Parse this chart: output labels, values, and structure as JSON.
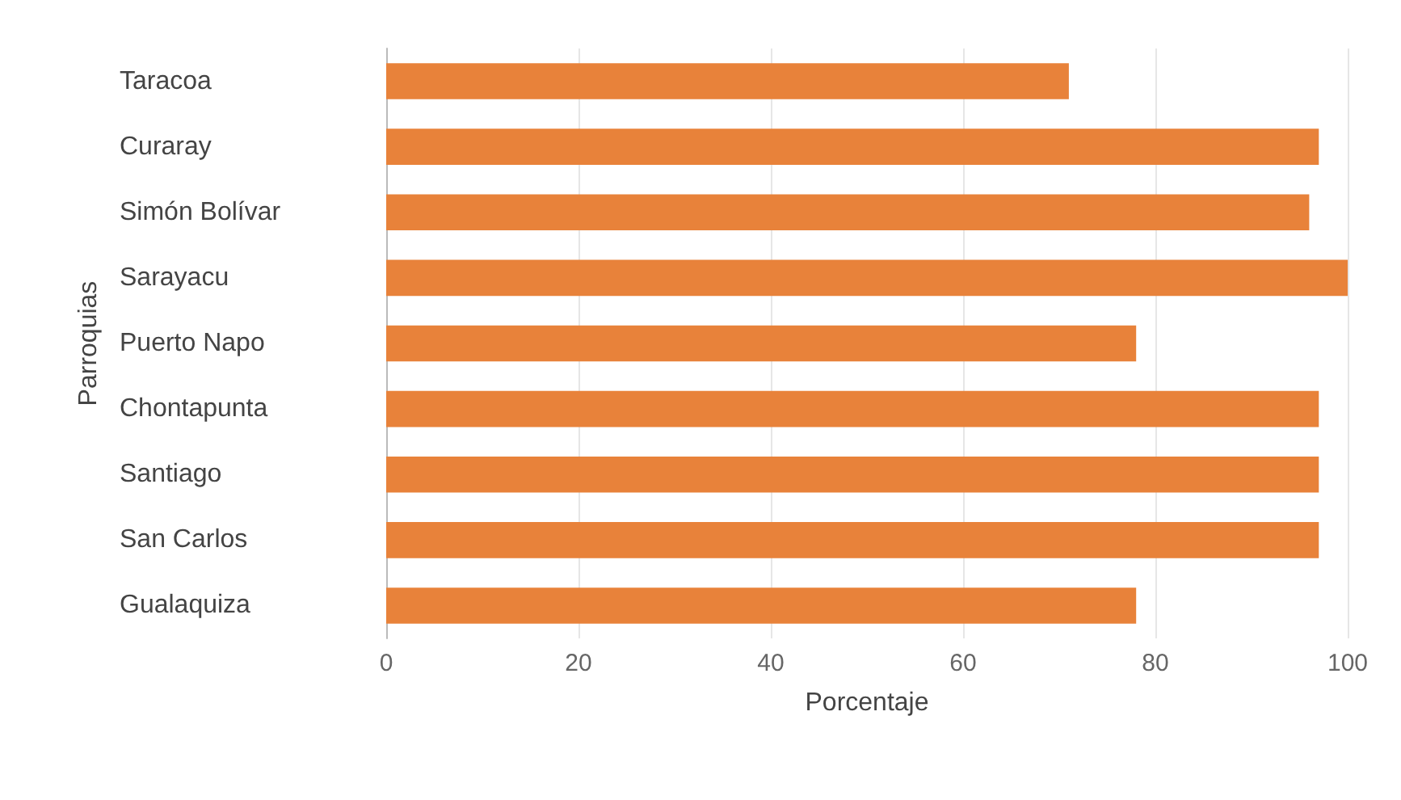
{
  "chart_data": {
    "type": "bar",
    "orientation": "horizontal",
    "xlabel": "Porcentaje",
    "ylabel": "Parroquias",
    "categories": [
      "Taracoa",
      "Curaray",
      "Simón Bolívar",
      "Sarayacu",
      "Puerto Napo",
      "Chontapunta",
      "Santiago",
      "San Carlos",
      "Gualaquiza"
    ],
    "values": [
      71,
      97,
      96,
      100,
      78,
      97,
      97,
      97,
      78
    ],
    "color": "#e8823a",
    "xlim": [
      0,
      100
    ],
    "xticks": [
      0,
      20,
      40,
      60,
      80,
      100
    ],
    "grid": "x"
  }
}
